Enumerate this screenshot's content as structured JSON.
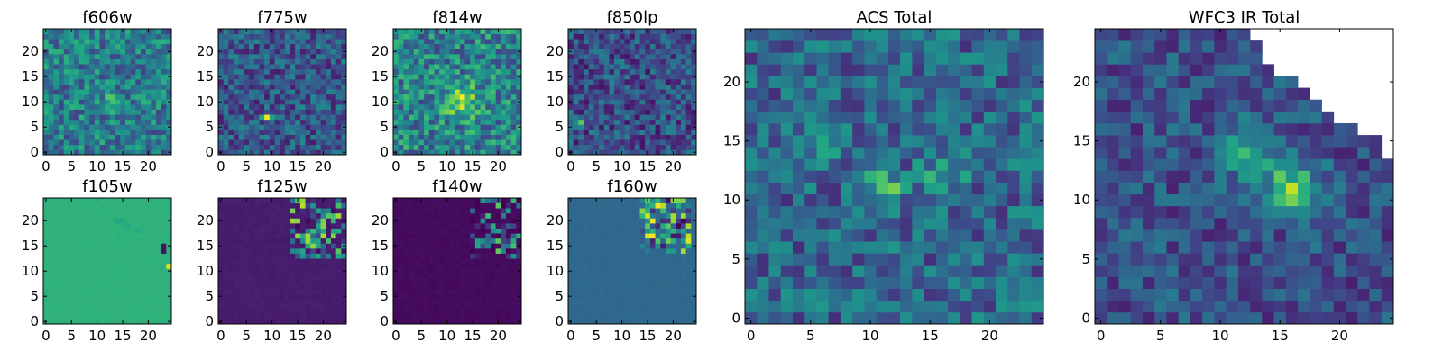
{
  "chart_data": [
    {
      "type": "heatmap",
      "id": "f606w",
      "title": "f606w",
      "xticks": [
        "0",
        "5",
        "10",
        "15",
        "20"
      ],
      "yticks": [
        "0",
        "5",
        "10",
        "15",
        "20"
      ],
      "xlim": [
        -0.5,
        24.5
      ],
      "ylim": [
        -0.5,
        24.5
      ],
      "colormap": "viridis",
      "pattern": "noise",
      "seed": 11,
      "base": 0.42,
      "spread": 0.22,
      "blobs": [
        {
          "x": 13,
          "y": 10,
          "amp": 0.25,
          "sigma": 1.2
        }
      ],
      "mask": "none"
    },
    {
      "type": "heatmap",
      "id": "f775w",
      "title": "f775w",
      "xticks": [
        "0",
        "5",
        "10",
        "15",
        "20"
      ],
      "yticks": [
        "0",
        "5",
        "10",
        "15",
        "20"
      ],
      "xlim": [
        -0.5,
        24.5
      ],
      "ylim": [
        -0.5,
        24.5
      ],
      "colormap": "viridis",
      "pattern": "noise",
      "seed": 23,
      "base": 0.28,
      "spread": 0.2,
      "blobs": [
        {
          "x": 9,
          "y": 7,
          "amp": 0.5,
          "sigma": 0.6
        }
      ],
      "mask": "none"
    },
    {
      "type": "heatmap",
      "id": "f814w",
      "title": "f814w",
      "xticks": [
        "0",
        "5",
        "10",
        "15",
        "20"
      ],
      "yticks": [
        "0",
        "5",
        "10",
        "15",
        "20"
      ],
      "xlim": [
        -0.5,
        24.5
      ],
      "ylim": [
        -0.5,
        24.5
      ],
      "colormap": "viridis",
      "pattern": "noise",
      "seed": 37,
      "base": 0.45,
      "spread": 0.25,
      "blobs": [
        {
          "x": 13,
          "y": 10,
          "amp": 0.4,
          "sigma": 2.2
        }
      ],
      "mask": "none"
    },
    {
      "type": "heatmap",
      "id": "f850lp",
      "title": "f850lp",
      "xticks": [
        "0",
        "5",
        "10",
        "15",
        "20"
      ],
      "yticks": [
        "0",
        "5",
        "10",
        "15",
        "20"
      ],
      "xlim": [
        -0.5,
        24.5
      ],
      "ylim": [
        -0.5,
        24.5
      ],
      "colormap": "viridis",
      "pattern": "noise",
      "seed": 51,
      "base": 0.25,
      "spread": 0.2,
      "blobs": [
        {
          "x": 2,
          "y": 6,
          "amp": 0.55,
          "sigma": 0.5
        }
      ],
      "mask": "none"
    },
    {
      "type": "heatmap",
      "id": "f105w",
      "title": "f105w",
      "xticks": [
        "0",
        "5",
        "10",
        "15",
        "20"
      ],
      "yticks": [
        "0",
        "5",
        "10",
        "15",
        "20"
      ],
      "xlim": [
        -0.5,
        24.5
      ],
      "ylim": [
        -0.5,
        24.5
      ],
      "colormap": "viridis",
      "pattern": "flat",
      "base": 0.64,
      "spots": [
        {
          "x": 23,
          "y": 15,
          "v": 0.05
        },
        {
          "x": 23,
          "y": 14,
          "v": 0.05
        },
        {
          "x": 24,
          "y": 11,
          "v": 0.95
        },
        {
          "x": 14,
          "y": 20,
          "v": 0.6
        },
        {
          "x": 15,
          "y": 20,
          "v": 0.6
        },
        {
          "x": 16,
          "y": 19,
          "v": 0.61
        },
        {
          "x": 18,
          "y": 18,
          "v": 0.61
        }
      ]
    },
    {
      "type": "heatmap",
      "id": "f125w",
      "title": "f125w",
      "xticks": [
        "0",
        "5",
        "10",
        "15",
        "20"
      ],
      "yticks": [
        "0",
        "5",
        "10",
        "15",
        "20"
      ],
      "xlim": [
        -0.5,
        24.5
      ],
      "ylim": [
        -0.5,
        24.5
      ],
      "colormap": "viridis",
      "pattern": "corner",
      "seed": 67,
      "base": 0.08,
      "region": {
        "x0": 14,
        "y0": 13,
        "x1": 24,
        "y1": 24
      },
      "regionBase": 0.45,
      "regionSpread": 0.45
    },
    {
      "type": "heatmap",
      "id": "f140w",
      "title": "f140w",
      "xticks": [
        "0",
        "5",
        "10",
        "15",
        "20"
      ],
      "yticks": [
        "0",
        "5",
        "10",
        "15",
        "20"
      ],
      "xlim": [
        -0.5,
        24.5
      ],
      "ylim": [
        -0.5,
        24.5
      ],
      "colormap": "viridis",
      "pattern": "corner",
      "seed": 79,
      "base": 0.03,
      "region": {
        "x0": 15,
        "y0": 13,
        "x1": 24,
        "y1": 24
      },
      "regionBase": 0.3,
      "regionSpread": 0.45
    },
    {
      "type": "heatmap",
      "id": "f160w",
      "title": "f160w",
      "xticks": [
        "0",
        "5",
        "10",
        "15",
        "20"
      ],
      "yticks": [
        "0",
        "5",
        "10",
        "15",
        "20"
      ],
      "xlim": [
        -0.5,
        24.5
      ],
      "ylim": [
        -0.5,
        24.5
      ],
      "colormap": "viridis",
      "pattern": "corner",
      "seed": 91,
      "base": 0.34,
      "region": {
        "x0": 14,
        "y0": 14,
        "x1": 23,
        "y1": 24
      },
      "regionBase": 0.5,
      "regionSpread": 0.5
    },
    {
      "type": "heatmap",
      "id": "acs-total",
      "title": "ACS Total",
      "xticks": [
        "0",
        "5",
        "10",
        "15",
        "20"
      ],
      "yticks": [
        "0",
        "5",
        "10",
        "15",
        "20"
      ],
      "xlim": [
        -0.5,
        24.5
      ],
      "ylim": [
        -0.5,
        24.5
      ],
      "colormap": "viridis",
      "pattern": "noise",
      "seed": 103,
      "base": 0.33,
      "spread": 0.2,
      "blobs": [
        {
          "x": 11,
          "y": 11,
          "amp": 0.45,
          "sigma": 1.0
        },
        {
          "x": 16,
          "y": 12,
          "amp": 0.25,
          "sigma": 1.2
        },
        {
          "x": 6,
          "y": 15,
          "amp": 0.15,
          "sigma": 1.4
        }
      ],
      "mask": "none"
    },
    {
      "type": "heatmap",
      "id": "wfc3-ir-total",
      "title": "WFC3 IR Total",
      "xticks": [
        "0",
        "5",
        "10",
        "15",
        "20"
      ],
      "yticks": [
        "0",
        "5",
        "10",
        "15",
        "20"
      ],
      "xlim": [
        -0.5,
        24.5
      ],
      "ylim": [
        -0.5,
        24.5
      ],
      "colormap": "viridis",
      "pattern": "noise",
      "seed": 127,
      "base": 0.25,
      "spread": 0.16,
      "blobs": [
        {
          "x": 16,
          "y": 11,
          "amp": 0.5,
          "sigma": 1.6
        },
        {
          "x": 12,
          "y": 14,
          "amp": 0.3,
          "sigma": 1.6
        }
      ],
      "mask": "wedge"
    }
  ],
  "colors": {
    "frame": "#000000",
    "background": "#ffffff"
  }
}
